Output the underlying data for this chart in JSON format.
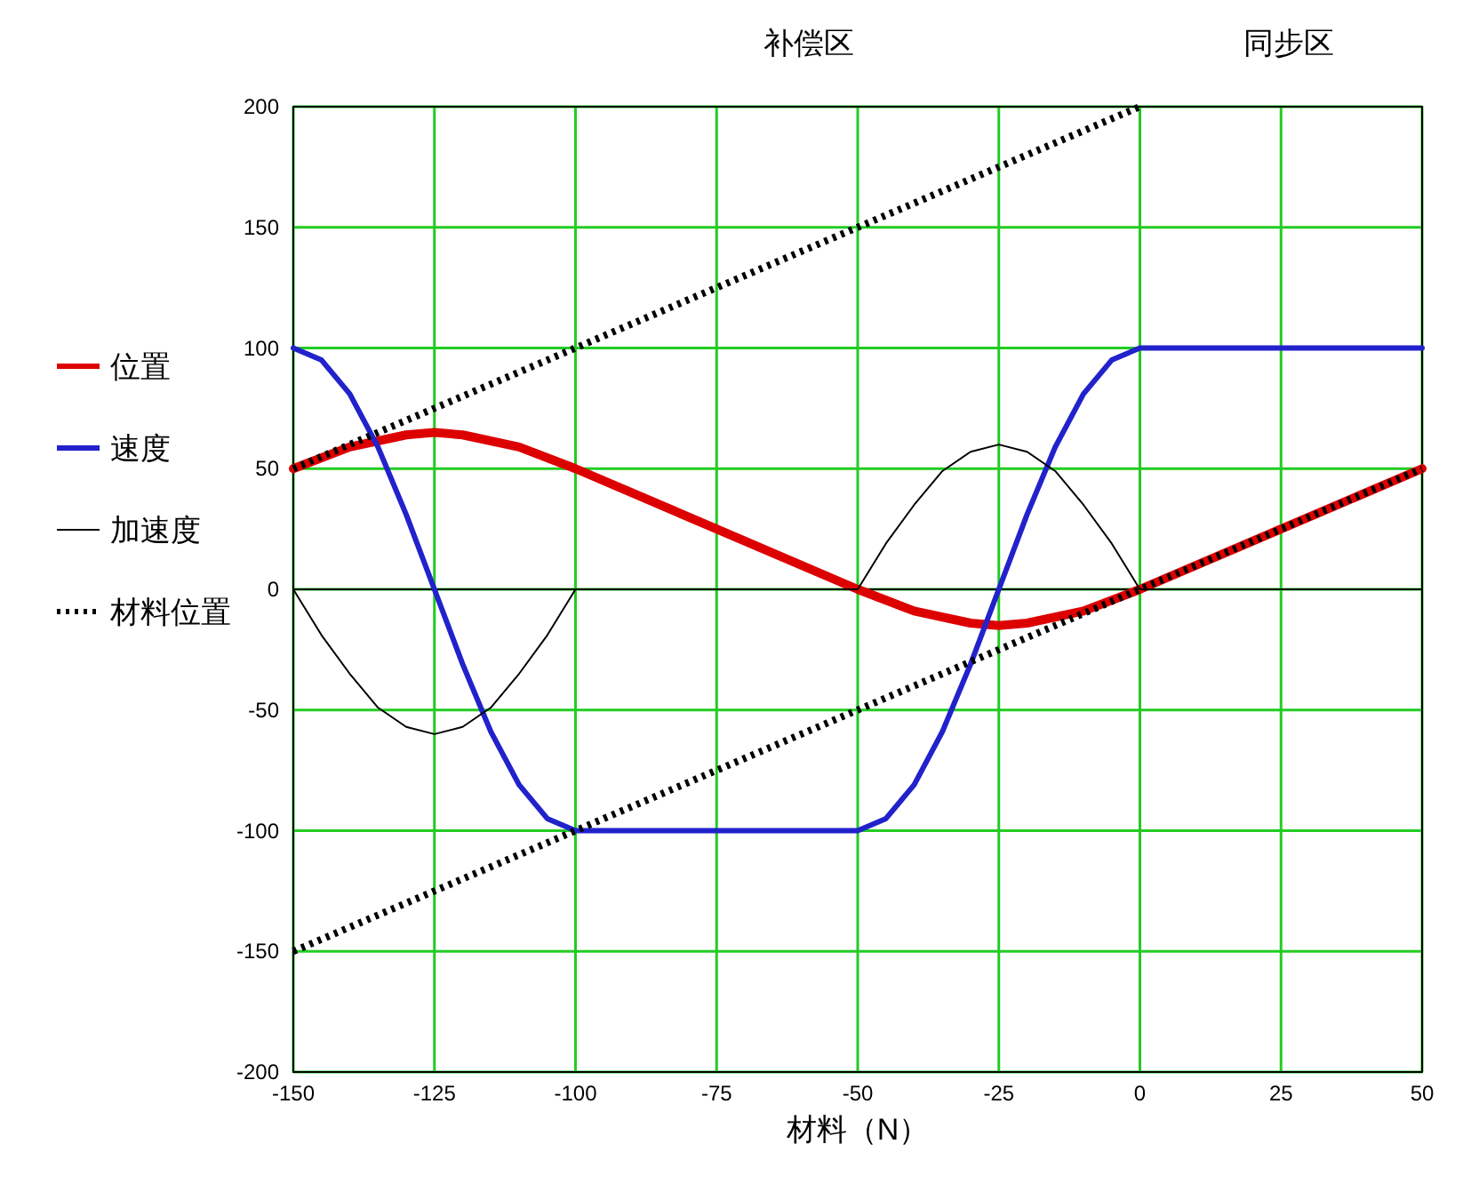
{
  "chart_data": {
    "type": "line",
    "xlabel": "材料（N）",
    "xlim": [
      -150,
      50
    ],
    "ylim": [
      -200,
      200
    ],
    "xticks": [
      -150,
      -125,
      -100,
      -75,
      -50,
      -25,
      0,
      25,
      50
    ],
    "yticks": [
      -200,
      -150,
      -100,
      -50,
      0,
      50,
      100,
      150,
      200
    ],
    "grid": true,
    "legend": "left",
    "annotations": [
      "补偿区",
      "同步区"
    ],
    "series": [
      {
        "name": "位置",
        "color": "#dd0000",
        "x": [
          -150,
          -140,
          -130,
          -125,
          -120,
          -110,
          -100,
          -75,
          -50,
          -40,
          -30,
          -25,
          -20,
          -10,
          0,
          25,
          50
        ],
        "values": [
          50,
          59,
          64,
          65,
          64,
          59,
          50,
          25,
          0,
          -9,
          -14,
          -15,
          -14,
          -9,
          0,
          25,
          50
        ]
      },
      {
        "name": "速度",
        "color": "#2222cc",
        "x": [
          -150,
          -145,
          -140,
          -135,
          -130,
          -125,
          -120,
          -115,
          -110,
          -105,
          -100,
          -50,
          -45,
          -40,
          -35,
          -30,
          -25,
          -20,
          -15,
          -10,
          -5,
          0,
          50
        ],
        "values": [
          100,
          95,
          81,
          59,
          31,
          0,
          -31,
          -59,
          -81,
          -95,
          -100,
          -100,
          -95,
          -81,
          -59,
          -31,
          0,
          31,
          59,
          81,
          95,
          100,
          100
        ]
      },
      {
        "name": "加速度",
        "color": "#000000",
        "x": [
          -150,
          -145,
          -140,
          -135,
          -130,
          -125,
          -120,
          -115,
          -110,
          -105,
          -100,
          -50,
          -45,
          -40,
          -35,
          -30,
          -25,
          -20,
          -15,
          -10,
          -5,
          0,
          50
        ],
        "values": [
          0,
          -19,
          -35,
          -49,
          -57,
          -60,
          -57,
          -49,
          -35,
          -19,
          0,
          0,
          19,
          35,
          49,
          57,
          60,
          57,
          49,
          35,
          19,
          0,
          0
        ]
      },
      {
        "name": "材料位置",
        "color": "#000000",
        "line_style": "dotted",
        "x": [
          -150,
          0
        ],
        "values": [
          50,
          200
        ]
      },
      {
        "color": "#000000",
        "line_style": "dotted",
        "x": [
          -150,
          50
        ],
        "values": [
          -150,
          50
        ]
      }
    ]
  }
}
